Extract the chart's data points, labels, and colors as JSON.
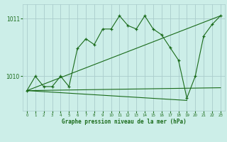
{
  "background_color": "#cceee8",
  "grid_color": "#aacccc",
  "line_color": "#1a6b1a",
  "title": "Graphe pression niveau de la mer (hPa)",
  "xlim": [
    -0.5,
    23.5
  ],
  "ylim": [
    1009.4,
    1011.25
  ],
  "yticks": [
    1010,
    1011
  ],
  "xticks": [
    0,
    1,
    2,
    3,
    4,
    5,
    6,
    7,
    8,
    9,
    10,
    11,
    12,
    13,
    14,
    15,
    16,
    17,
    18,
    19,
    20,
    21,
    22,
    23
  ],
  "series": [
    {
      "x": [
        0,
        1,
        2,
        3,
        4,
        5,
        6,
        7,
        8,
        9,
        10,
        11,
        12,
        13,
        14,
        15,
        16,
        17,
        18,
        19,
        20,
        21,
        22,
        23
      ],
      "y": [
        1009.75,
        1010.0,
        1009.82,
        1009.82,
        1010.0,
        1009.82,
        1010.48,
        1010.65,
        1010.55,
        1010.82,
        1010.82,
        1011.05,
        1010.88,
        1010.82,
        1011.05,
        1010.82,
        1010.72,
        1010.5,
        1010.28,
        1009.62,
        1010.0,
        1010.7,
        1010.9,
        1011.05
      ],
      "style": "marker"
    },
    {
      "x": [
        0,
        23
      ],
      "y": [
        1009.75,
        1011.05
      ],
      "style": "line_only"
    },
    {
      "x": [
        0,
        19
      ],
      "y": [
        1009.75,
        1009.58
      ],
      "style": "line_only"
    },
    {
      "x": [
        0,
        23
      ],
      "y": [
        1009.75,
        1009.8
      ],
      "style": "line_only"
    }
  ]
}
